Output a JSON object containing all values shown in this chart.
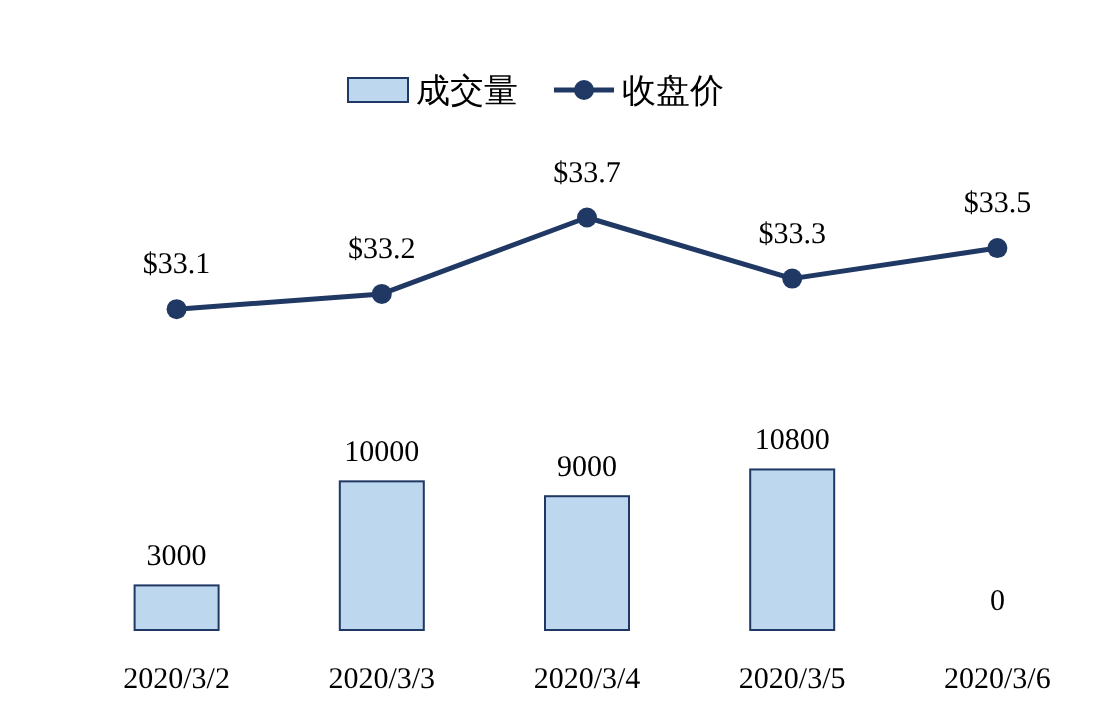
{
  "chart_data": {
    "type": "bar",
    "categories": [
      "2020/3/2",
      "2020/3/3",
      "2020/3/4",
      "2020/3/5",
      "2020/3/6"
    ],
    "series": [
      {
        "name": "成交量",
        "type": "bar",
        "color": "#bdd7ee",
        "values": [
          3000,
          10000,
          9000,
          10800,
          0
        ]
      },
      {
        "name": "收盘价",
        "type": "line",
        "axis": "y2",
        "color": "#203864",
        "marker": "circle",
        "values": [
          33.1,
          33.2,
          33.7,
          33.3,
          33.5
        ],
        "value_labels": [
          "$33.1",
          "$33.2",
          "$33.7",
          "$33.3",
          "$33.5"
        ]
      }
    ],
    "ylim": [
      0,
      37000
    ],
    "y2lim": [
      31,
      34.6
    ],
    "data_labels": true,
    "legend": "top"
  }
}
